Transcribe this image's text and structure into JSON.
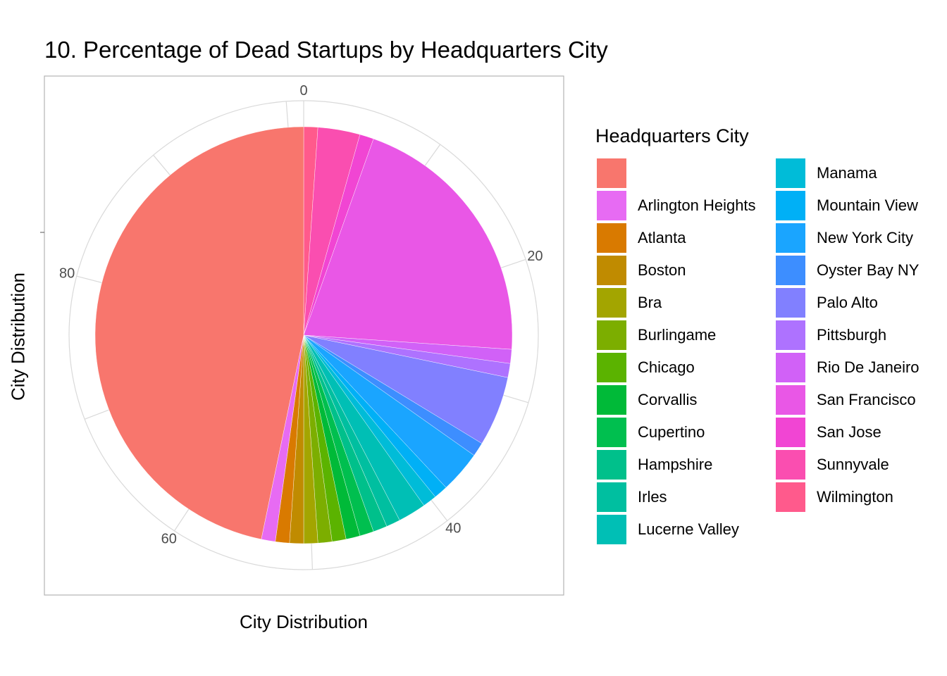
{
  "chart_data": {
    "type": "pie",
    "title": "10. Percentage of Dead Startups by Headquarters City",
    "xlabel": "City Distribution",
    "ylabel": "City Distribution",
    "radial_ticks": [
      "0",
      "20",
      "40",
      "60",
      "80"
    ],
    "legend": {
      "title": "Headquarters City",
      "placement": "right"
    },
    "slices": [
      {
        "label": "",
        "value": 47.3,
        "color": "#F8766D"
      },
      {
        "label": "Arlington Heights",
        "value": 1.1,
        "color": "#E76BF3"
      },
      {
        "label": "Atlanta",
        "value": 1.1,
        "color": "#D97A00"
      },
      {
        "label": "Boston",
        "value": 1.1,
        "color": "#C08B00"
      },
      {
        "label": "Bra",
        "value": 1.1,
        "color": "#A3A500"
      },
      {
        "label": "Burlingame",
        "value": 1.1,
        "color": "#7CAE00"
      },
      {
        "label": "Chicago",
        "value": 1.1,
        "color": "#5BB300"
      },
      {
        "label": "Corvallis",
        "value": 1.1,
        "color": "#00BA38"
      },
      {
        "label": "Cupertino",
        "value": 1.1,
        "color": "#00BF4F"
      },
      {
        "label": "Hampshire",
        "value": 1.1,
        "color": "#00C08B"
      },
      {
        "label": "Irles",
        "value": 1.1,
        "color": "#00BFA0"
      },
      {
        "label": "Lucerne Valley",
        "value": 2.2,
        "color": "#00BFB5"
      },
      {
        "label": "Manama",
        "value": 1.1,
        "color": "#00BCD8"
      },
      {
        "label": "Mountain View",
        "value": 1.1,
        "color": "#00B0F6"
      },
      {
        "label": "New York City",
        "value": 3.3,
        "color": "#1AA5FF"
      },
      {
        "label": "Oyster Bay NY",
        "value": 1.1,
        "color": "#3D8EFF"
      },
      {
        "label": "Palo Alto",
        "value": 5.5,
        "color": "#8180FF"
      },
      {
        "label": "Pittsburgh",
        "value": 1.1,
        "color": "#AE72FF"
      },
      {
        "label": "Rio De Janeiro",
        "value": 1.1,
        "color": "#D161F7"
      },
      {
        "label": "San Francisco",
        "value": 20.9,
        "color": "#E957E6"
      },
      {
        "label": "San Jose",
        "value": 1.1,
        "color": "#F145D3"
      },
      {
        "label": "Sunnyvale",
        "value": 3.3,
        "color": "#FA4EB0"
      },
      {
        "label": "Wilmington",
        "value": 1.1,
        "color": "#FF5A8C"
      }
    ]
  }
}
